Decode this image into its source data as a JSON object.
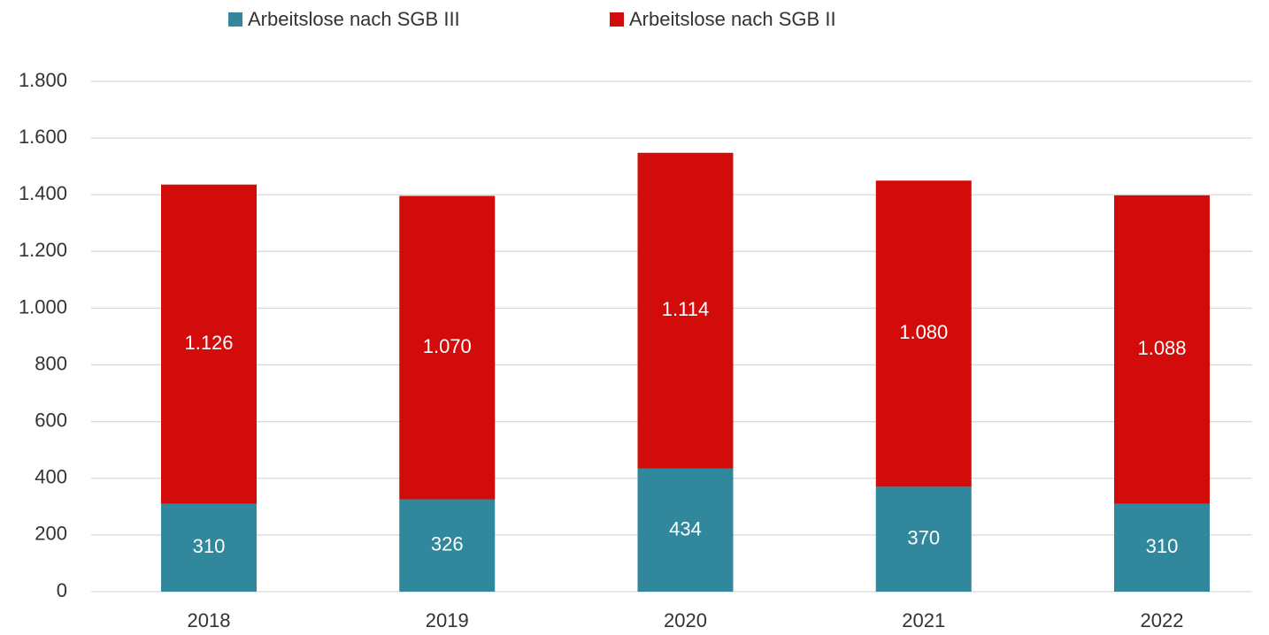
{
  "chart_data": {
    "type": "stacked_bar",
    "categories": [
      "2018",
      "2019",
      "2020",
      "2021",
      "2022"
    ],
    "series": [
      {
        "name": "Arbeitslose nach SGB III",
        "color": "#31879c",
        "values": [
          310,
          326,
          434,
          370,
          310
        ]
      },
      {
        "name": "Arbeitslose nach SGB II",
        "color": "#d20b0b",
        "values": [
          1126,
          1070,
          1114,
          1080,
          1088
        ],
        "value_labels": [
          "1.126",
          "1.070",
          "1.114",
          "1.080",
          "1.088"
        ]
      }
    ],
    "ylim": [
      0,
      1800
    ],
    "yticks": [
      0,
      200,
      400,
      600,
      800,
      {
        "value": 1000,
        "label": "1.000"
      },
      {
        "value": 1200,
        "label": "1.200"
      },
      {
        "value": 1400,
        "label": "1.400"
      },
      {
        "value": 1600,
        "label": "1.600"
      },
      {
        "value": 1800,
        "label": "1.800"
      }
    ],
    "grid": true,
    "legend": "top"
  }
}
